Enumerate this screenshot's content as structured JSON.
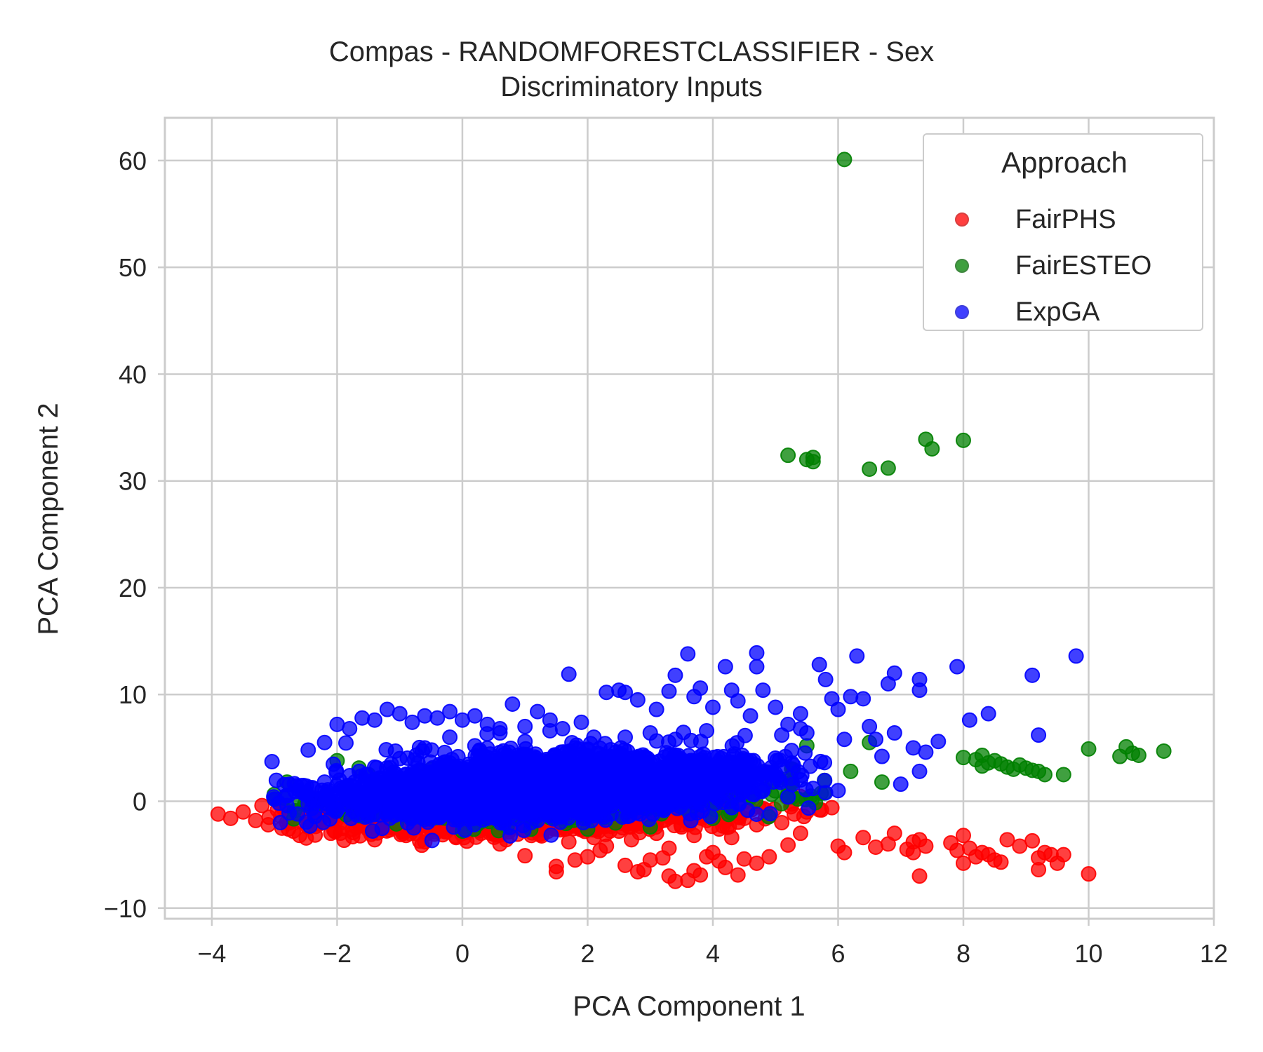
{
  "chart_data": {
    "type": "scatter",
    "title": "Compas - RANDOMFORESTCLASSIFIER - Sex",
    "subtitle": "Discriminatory Inputs",
    "xlabel": "PCA Component 1",
    "ylabel": "PCA Component 2",
    "xlim": [
      -4.75,
      12
    ],
    "ylim": [
      -11,
      64
    ],
    "xticks": [
      -4,
      -2,
      0,
      2,
      4,
      6,
      8,
      10,
      12
    ],
    "xtick_labels": [
      "−4",
      "−2",
      "0",
      "2",
      "4",
      "6",
      "8",
      "10",
      "12"
    ],
    "yticks": [
      -10,
      0,
      10,
      20,
      30,
      40,
      50,
      60
    ],
    "ytick_labels": [
      "−10",
      "0",
      "10",
      "20",
      "30",
      "40",
      "50",
      "60"
    ],
    "grid": true,
    "legend": {
      "title": "Approach",
      "placement": "top-right"
    },
    "series": [
      {
        "name": "FairPHS",
        "color": "#ff0000",
        "points": [
          [
            -3.9,
            -1.2
          ],
          [
            -3.7,
            -1.6
          ],
          [
            -3.5,
            -1.0
          ],
          [
            -3.3,
            -1.8
          ],
          [
            -3.1,
            -2.2
          ],
          [
            -2.9,
            -1.4
          ],
          [
            -2.7,
            -2.8
          ],
          [
            -2.5,
            -0.6
          ],
          [
            -2.3,
            -2.0
          ],
          [
            -2.1,
            -3.0
          ],
          [
            -1.9,
            -1.2
          ],
          [
            -1.7,
            -2.4
          ],
          [
            -1.5,
            -0.8
          ],
          [
            -1.3,
            -2.6
          ],
          [
            -1.1,
            -1.6
          ],
          [
            -0.9,
            -3.2
          ],
          [
            -0.7,
            -2.0
          ],
          [
            -0.5,
            -1.2
          ],
          [
            -0.3,
            -2.8
          ],
          [
            -0.1,
            -3.4
          ],
          [
            0.1,
            -2.2
          ],
          [
            0.3,
            -3.0
          ],
          [
            0.5,
            -1.4
          ],
          [
            0.7,
            -3.6
          ],
          [
            0.9,
            -2.4
          ],
          [
            1.1,
            -3.2
          ],
          [
            1.3,
            -1.8
          ],
          [
            1.5,
            -2.6
          ],
          [
            1.7,
            -3.8
          ],
          [
            1.9,
            -2.0
          ],
          [
            2.1,
            -3.4
          ],
          [
            2.3,
            -4.2
          ],
          [
            2.5,
            -2.8
          ],
          [
            2.7,
            -3.6
          ],
          [
            2.9,
            -2.2
          ],
          [
            3.1,
            -3.0
          ],
          [
            3.3,
            -4.4
          ],
          [
            3.5,
            -2.4
          ],
          [
            3.7,
            -3.2
          ],
          [
            3.9,
            -1.8
          ],
          [
            4.1,
            -2.6
          ],
          [
            4.3,
            -3.4
          ],
          [
            4.5,
            -1.6
          ],
          [
            4.7,
            -2.2
          ],
          [
            4.9,
            -1.4
          ],
          [
            5.1,
            -2.0
          ],
          [
            5.3,
            -1.2
          ],
          [
            5.5,
            -1.0
          ],
          [
            5.7,
            -0.8
          ],
          [
            5.9,
            -0.6
          ],
          [
            -3.2,
            -0.4
          ],
          [
            -2.6,
            -3.2
          ],
          [
            -1.4,
            -3.6
          ],
          [
            -0.6,
            -3.8
          ],
          [
            0.6,
            -4.0
          ],
          [
            1.0,
            -5.1
          ],
          [
            1.5,
            -6.1
          ],
          [
            1.5,
            -6.6
          ],
          [
            1.8,
            -5.5
          ],
          [
            2.0,
            -5.2
          ],
          [
            2.2,
            -4.6
          ],
          [
            2.6,
            -6.0
          ],
          [
            2.8,
            -6.6
          ],
          [
            2.9,
            -6.4
          ],
          [
            3.0,
            -5.5
          ],
          [
            3.2,
            -5.3
          ],
          [
            3.3,
            -7.0
          ],
          [
            3.4,
            -7.5
          ],
          [
            3.6,
            -7.4
          ],
          [
            3.7,
            -6.5
          ],
          [
            3.8,
            -6.9
          ],
          [
            3.9,
            -5.2
          ],
          [
            4.0,
            -4.8
          ],
          [
            4.1,
            -5.6
          ],
          [
            4.2,
            -6.2
          ],
          [
            4.4,
            -6.9
          ],
          [
            4.5,
            -5.4
          ],
          [
            4.7,
            -5.8
          ],
          [
            4.9,
            -5.2
          ],
          [
            5.2,
            -4.1
          ],
          [
            5.4,
            -3.0
          ],
          [
            6.0,
            -4.2
          ],
          [
            6.1,
            -4.8
          ],
          [
            6.4,
            -3.4
          ],
          [
            6.6,
            -4.3
          ],
          [
            6.8,
            -4.0
          ],
          [
            6.9,
            -3.0
          ],
          [
            7.1,
            -4.5
          ],
          [
            7.2,
            -3.8
          ],
          [
            7.2,
            -4.8
          ],
          [
            7.3,
            -7.0
          ],
          [
            7.3,
            -3.6
          ],
          [
            7.4,
            -4.2
          ],
          [
            7.8,
            -3.9
          ],
          [
            7.9,
            -4.6
          ],
          [
            8.0,
            -3.2
          ],
          [
            8.0,
            -5.8
          ],
          [
            8.1,
            -4.4
          ],
          [
            8.2,
            -5.2
          ],
          [
            8.3,
            -4.8
          ],
          [
            8.4,
            -5.0
          ],
          [
            8.5,
            -5.5
          ],
          [
            8.6,
            -5.7
          ],
          [
            8.7,
            -3.6
          ],
          [
            8.9,
            -4.2
          ],
          [
            9.1,
            -3.7
          ],
          [
            9.2,
            -5.3
          ],
          [
            9.2,
            -6.4
          ],
          [
            9.3,
            -4.8
          ],
          [
            9.4,
            -5.0
          ],
          [
            9.5,
            -5.8
          ],
          [
            9.6,
            -5.0
          ],
          [
            10.0,
            -6.8
          ]
        ]
      },
      {
        "name": "FairESTEO",
        "color": "#008000",
        "points": [
          [
            6.1,
            60.1
          ],
          [
            5.2,
            32.4
          ],
          [
            5.5,
            32.0
          ],
          [
            5.6,
            32.2
          ],
          [
            5.6,
            31.8
          ],
          [
            6.5,
            31.1
          ],
          [
            6.8,
            31.2
          ],
          [
            7.4,
            33.9
          ],
          [
            7.5,
            33.0
          ],
          [
            8.0,
            33.8
          ],
          [
            8.0,
            4.1
          ],
          [
            8.2,
            3.9
          ],
          [
            8.3,
            4.3
          ],
          [
            8.3,
            3.3
          ],
          [
            8.4,
            3.6
          ],
          [
            8.5,
            3.8
          ],
          [
            8.6,
            3.5
          ],
          [
            8.7,
            3.2
          ],
          [
            8.8,
            3.0
          ],
          [
            8.9,
            3.4
          ],
          [
            9.0,
            3.1
          ],
          [
            9.1,
            2.9
          ],
          [
            9.2,
            2.8
          ],
          [
            9.3,
            2.5
          ],
          [
            9.6,
            2.5
          ],
          [
            10.0,
            4.9
          ],
          [
            10.5,
            4.2
          ],
          [
            10.6,
            5.1
          ],
          [
            10.7,
            4.5
          ],
          [
            10.8,
            4.3
          ],
          [
            11.2,
            4.7
          ],
          [
            -2.0,
            3.8
          ],
          [
            -2.8,
            1.8
          ],
          [
            -1.5,
            2.5
          ],
          [
            -0.5,
            3.0
          ],
          [
            1.0,
            2.8
          ],
          [
            2.0,
            -2.6
          ],
          [
            3.0,
            -2.4
          ],
          [
            4.0,
            -1.6
          ],
          [
            4.5,
            2.0
          ],
          [
            5.5,
            5.2
          ],
          [
            6.2,
            2.8
          ],
          [
            6.5,
            5.5
          ],
          [
            6.7,
            1.8
          ],
          [
            -3.0,
            0.2
          ],
          [
            0.0,
            -2.8
          ]
        ]
      },
      {
        "name": "ExpGA",
        "color": "#0000ff",
        "points": [
          [
            -3.0,
            0.2
          ],
          [
            -2.8,
            -0.4
          ],
          [
            -2.6,
            1.0
          ],
          [
            -2.4,
            0.0
          ],
          [
            -2.2,
            1.8
          ],
          [
            -2.0,
            -0.8
          ],
          [
            -1.8,
            2.4
          ],
          [
            -1.6,
            0.8
          ],
          [
            -1.4,
            3.2
          ],
          [
            -1.2,
            -1.0
          ],
          [
            -1.0,
            4.0
          ],
          [
            -0.8,
            1.6
          ],
          [
            -0.6,
            5.0
          ],
          [
            -0.4,
            -1.4
          ],
          [
            -0.2,
            6.0
          ],
          [
            0.0,
            2.6
          ],
          [
            0.2,
            5.2
          ],
          [
            0.4,
            -1.6
          ],
          [
            0.6,
            6.4
          ],
          [
            0.8,
            3.0
          ],
          [
            1.0,
            5.6
          ],
          [
            1.2,
            -1.8
          ],
          [
            1.4,
            6.6
          ],
          [
            1.6,
            2.2
          ],
          [
            1.8,
            5.0
          ],
          [
            2.0,
            -1.2
          ],
          [
            2.2,
            4.4
          ],
          [
            2.4,
            1.4
          ],
          [
            2.6,
            6.0
          ],
          [
            2.8,
            -0.6
          ],
          [
            3.0,
            3.6
          ],
          [
            3.2,
            0.8
          ],
          [
            3.4,
            5.8
          ],
          [
            3.6,
            0.2
          ],
          [
            3.8,
            4.2
          ],
          [
            4.0,
            1.6
          ],
          [
            4.2,
            3.0
          ],
          [
            4.4,
            0.6
          ],
          [
            4.6,
            3.8
          ],
          [
            4.8,
            1.0
          ],
          [
            5.0,
            2.6
          ],
          [
            5.2,
            0.4
          ],
          [
            5.4,
            2.0
          ],
          [
            5.6,
            1.2
          ],
          [
            5.8,
            0.8
          ],
          [
            6.0,
            1.0
          ],
          [
            -2.2,
            5.5
          ],
          [
            -2.0,
            7.2
          ],
          [
            -1.8,
            6.8
          ],
          [
            -1.6,
            7.8
          ],
          [
            -1.4,
            7.6
          ],
          [
            -1.2,
            8.6
          ],
          [
            -1.0,
            8.2
          ],
          [
            -0.8,
            7.4
          ],
          [
            -0.6,
            8.0
          ],
          [
            -0.4,
            7.8
          ],
          [
            -0.2,
            8.4
          ],
          [
            0.0,
            7.6
          ],
          [
            0.2,
            8.0
          ],
          [
            0.4,
            7.2
          ],
          [
            0.6,
            6.8
          ],
          [
            0.8,
            9.1
          ],
          [
            1.0,
            7.0
          ],
          [
            1.2,
            8.4
          ],
          [
            1.4,
            7.6
          ],
          [
            1.6,
            6.8
          ],
          [
            1.7,
            11.9
          ],
          [
            1.9,
            7.4
          ],
          [
            2.1,
            6.0
          ],
          [
            2.3,
            10.2
          ],
          [
            2.5,
            10.4
          ],
          [
            2.6,
            10.2
          ],
          [
            2.8,
            9.5
          ],
          [
            3.0,
            6.4
          ],
          [
            3.1,
            8.6
          ],
          [
            3.3,
            10.3
          ],
          [
            3.4,
            11.8
          ],
          [
            3.6,
            13.8
          ],
          [
            3.7,
            9.8
          ],
          [
            3.8,
            10.6
          ],
          [
            3.9,
            6.6
          ],
          [
            4.0,
            8.8
          ],
          [
            4.2,
            12.6
          ],
          [
            4.3,
            10.4
          ],
          [
            4.4,
            9.4
          ],
          [
            4.6,
            8.0
          ],
          [
            4.7,
            13.9
          ],
          [
            4.7,
            12.6
          ],
          [
            4.8,
            10.4
          ],
          [
            5.0,
            8.8
          ],
          [
            5.1,
            6.2
          ],
          [
            5.2,
            7.2
          ],
          [
            5.4,
            8.2
          ],
          [
            5.4,
            6.8
          ],
          [
            5.5,
            6.4
          ],
          [
            5.7,
            12.8
          ],
          [
            5.8,
            11.4
          ],
          [
            5.9,
            9.6
          ],
          [
            6.0,
            8.6
          ],
          [
            6.1,
            5.8
          ],
          [
            6.2,
            9.8
          ],
          [
            6.3,
            13.6
          ],
          [
            6.4,
            9.6
          ],
          [
            6.5,
            7.0
          ],
          [
            6.6,
            5.8
          ],
          [
            6.7,
            4.2
          ],
          [
            6.8,
            11.0
          ],
          [
            6.9,
            12.0
          ],
          [
            6.9,
            6.4
          ],
          [
            7.0,
            1.6
          ],
          [
            7.2,
            5.0
          ],
          [
            7.3,
            10.4
          ],
          [
            7.3,
            11.4
          ],
          [
            7.3,
            2.8
          ],
          [
            7.4,
            4.6
          ],
          [
            7.6,
            5.6
          ],
          [
            7.9,
            12.6
          ],
          [
            8.1,
            7.6
          ],
          [
            8.4,
            8.2
          ],
          [
            9.1,
            11.8
          ],
          [
            9.2,
            6.2
          ],
          [
            9.8,
            13.6
          ]
        ]
      }
    ]
  }
}
